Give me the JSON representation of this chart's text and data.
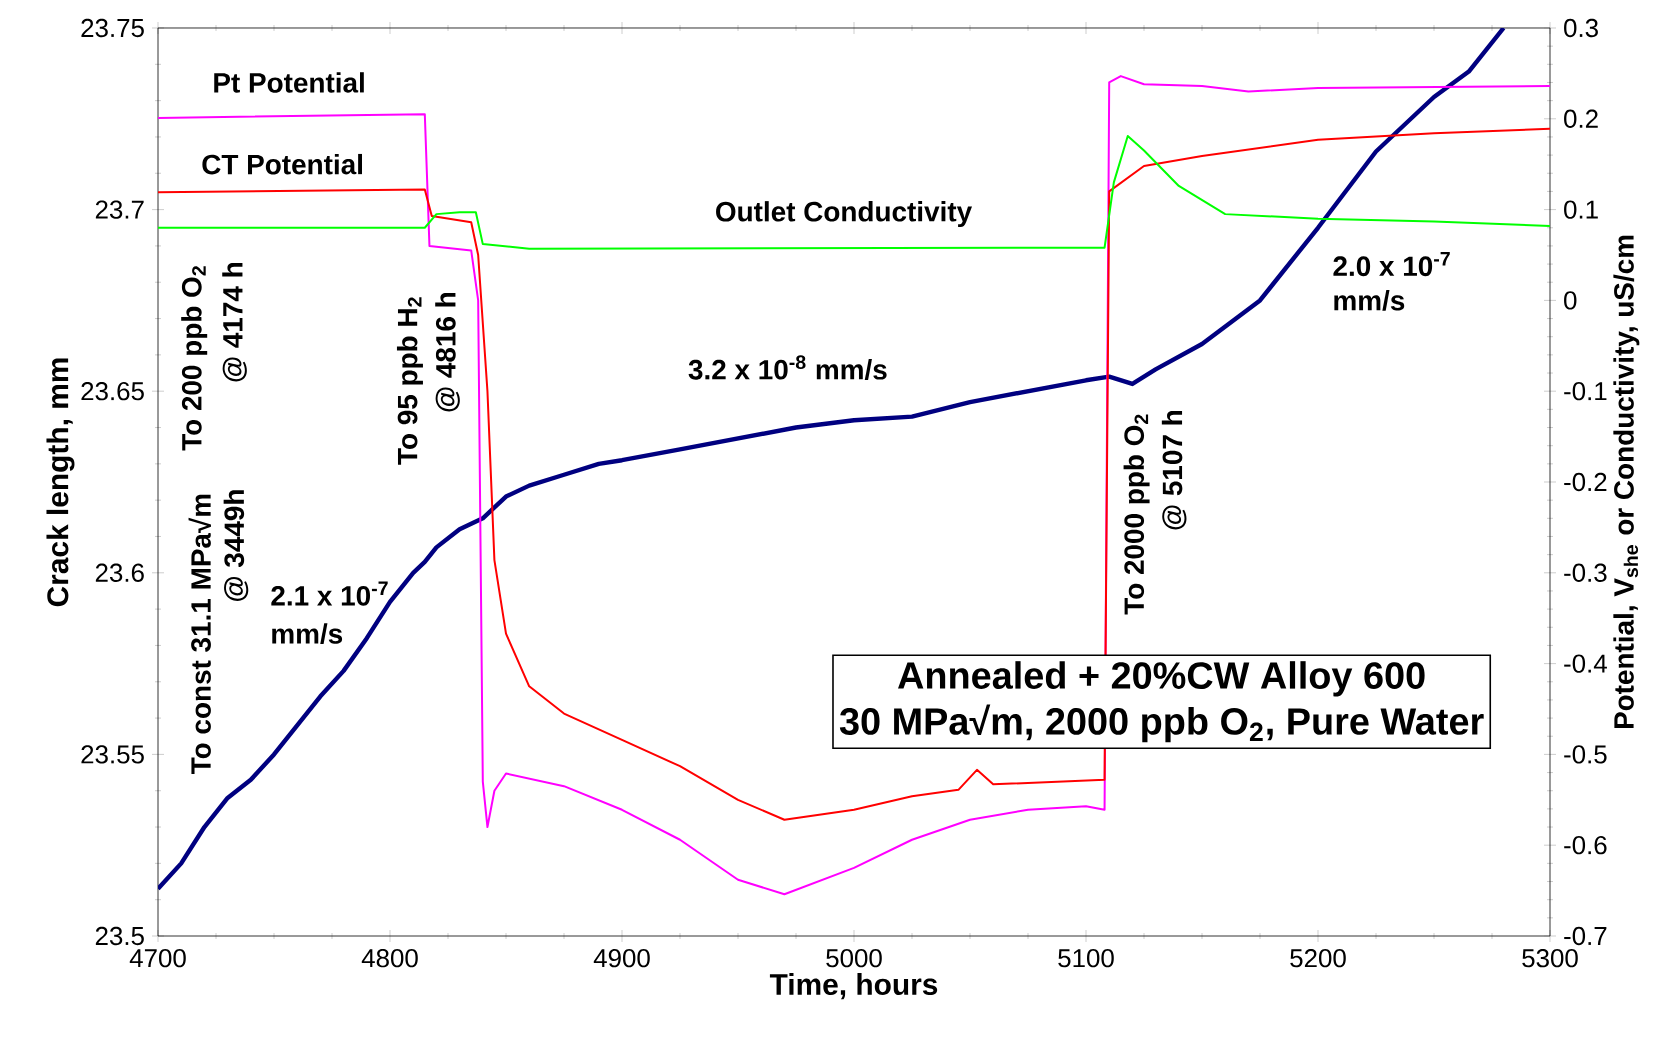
{
  "chart_data": {
    "type": "line",
    "title": "Annealed + 20%CW Alloy 600",
    "subtitle": "30 MPa√m, 2000 ppb O$_{2}$, Pure Water",
    "xlabel": "Time, hours",
    "ylabel": "Crack length, mm",
    "y2label": "Potential, V$_{she}$ or Conductivity, uS/cm",
    "xlim": [
      4700,
      5300
    ],
    "xticks": [
      4700,
      4800,
      4900,
      5000,
      5100,
      5200,
      5300
    ],
    "ylim": [
      23.5,
      23.75
    ],
    "yticks": [
      23.5,
      23.55,
      23.6,
      23.65,
      23.7,
      23.75
    ],
    "y2lim": [
      -0.7,
      0.3
    ],
    "y2ticks": [
      -0.7,
      -0.6,
      -0.5,
      -0.4,
      -0.3,
      -0.2,
      -0.1,
      0,
      0.1,
      0.2,
      0.3
    ],
    "series": [
      {
        "color": "#000080",
        "x": [
          4700,
          4710,
          4720,
          4730,
          4740,
          4750,
          4760,
          4770,
          4780,
          4790,
          4800,
          4810,
          4815,
          4820,
          4830,
          4840,
          4850,
          4860,
          4875,
          4890,
          4900,
          4925,
          4950,
          4975,
          5000,
          5025,
          5050,
          5075,
          5100,
          5110,
          5120,
          5130,
          5150,
          5175,
          5200,
          5225,
          5250,
          5265,
          5280
        ],
        "values": [
          23.513,
          23.52,
          23.53,
          23.538,
          23.543,
          23.55,
          23.558,
          23.566,
          23.573,
          23.582,
          23.592,
          23.6,
          23.603,
          23.607,
          23.612,
          23.615,
          23.621,
          23.624,
          23.627,
          23.63,
          23.631,
          23.634,
          23.637,
          23.64,
          23.642,
          23.643,
          23.647,
          23.65,
          23.653,
          23.654,
          23.652,
          23.656,
          23.663,
          23.675,
          23.695,
          23.716,
          23.731,
          23.738,
          23.75
        ]
      },
      {
        "name": "Pt  Potential",
        "color": "#ff00ff",
        "axis": "y2",
        "x": [
          4700,
          4815,
          4817,
          4835,
          4838,
          4840,
          4842,
          4845,
          4850,
          4875,
          4900,
          4925,
          4950,
          4970,
          5000,
          5025,
          5050,
          5075,
          5100,
          5108,
          5110,
          5115,
          5125,
          5150,
          5170,
          5200,
          5300
        ],
        "values": [
          0.201,
          0.205,
          0.06,
          0.055,
          0.0,
          -0.53,
          -0.58,
          -0.54,
          -0.521,
          -0.535,
          -0.561,
          -0.594,
          -0.638,
          -0.654,
          -0.625,
          -0.594,
          -0.572,
          -0.561,
          -0.557,
          -0.561,
          0.24,
          0.247,
          0.238,
          0.236,
          0.23,
          0.234,
          0.236
        ]
      },
      {
        "name": "CT Potential",
        "color": "#ff0000",
        "axis": "y2",
        "x": [
          4700,
          4815,
          4818,
          4835,
          4838,
          4842,
          4845,
          4850,
          4860,
          4875,
          4900,
          4925,
          4950,
          4970,
          5000,
          5025,
          5045,
          5053,
          5060,
          5108,
          5110,
          5125,
          5150,
          5200,
          5250,
          5300
        ],
        "values": [
          0.119,
          0.122,
          0.093,
          0.086,
          0.05,
          -0.1,
          -0.286,
          -0.367,
          -0.425,
          -0.455,
          -0.484,
          -0.513,
          -0.55,
          -0.572,
          -0.561,
          -0.546,
          -0.539,
          -0.517,
          -0.533,
          -0.528,
          0.12,
          0.148,
          0.159,
          0.177,
          0.184,
          0.189
        ]
      },
      {
        "name": "Outlet Conductivity",
        "color": "#00ff00",
        "axis": "y2",
        "x": [
          4700,
          4815,
          4820,
          4830,
          4837,
          4840,
          4860,
          5108,
          5112,
          5118,
          5125,
          5140,
          5160,
          5200,
          5250,
          5300
        ],
        "values": [
          0.08,
          0.08,
          0.095,
          0.097,
          0.097,
          0.062,
          0.057,
          0.058,
          0.13,
          0.181,
          0.165,
          0.126,
          0.095,
          0.09,
          0.087,
          0.082
        ]
      }
    ],
    "annotations": [
      "To const 31.1 MPa√m",
      "@ 3449h",
      "To 200 ppb O$_{2}$",
      "@ 4174 h",
      "To 95 ppb H$_{2}$",
      "@ 4816 h",
      "2.1 x 10$^{-7}$",
      "mm/s",
      "3.2 x 10$^{-8}$ mm/s",
      "2.0 x 10$^{-7}$",
      "mm/s",
      "To 2000 ppb O$_{2}$",
      "@ 5107 h"
    ]
  }
}
